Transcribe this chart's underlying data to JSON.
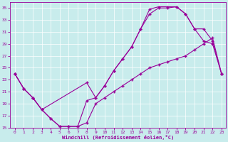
{
  "xlabel": "Windchill (Refroidissement éolien,°C)",
  "bg_color": "#c8ecec",
  "line_color": "#990099",
  "xlim": [
    -0.5,
    23.5
  ],
  "ylim": [
    15,
    36
  ],
  "yticks": [
    15,
    17,
    19,
    21,
    23,
    25,
    27,
    29,
    31,
    33,
    35
  ],
  "xticks": [
    0,
    1,
    2,
    3,
    4,
    5,
    6,
    7,
    8,
    9,
    10,
    11,
    12,
    13,
    14,
    15,
    16,
    17,
    18,
    19,
    20,
    21,
    22,
    23
  ],
  "line1_x": [
    0,
    1,
    2,
    3,
    4,
    5,
    6,
    7,
    8,
    9,
    10,
    11,
    12,
    13,
    14,
    15,
    16,
    17,
    18,
    19,
    20,
    21,
    22,
    23
  ],
  "line1_y": [
    24,
    21.5,
    20,
    18,
    16.5,
    15.2,
    15.2,
    15.2,
    15.8,
    19,
    20,
    21,
    22,
    23,
    24,
    25,
    25.5,
    26,
    26.5,
    27,
    28,
    29,
    30,
    24
  ],
  "line2_x": [
    0,
    1,
    2,
    3,
    4,
    5,
    6,
    7,
    8,
    9,
    10,
    11,
    12,
    13,
    14,
    15,
    16,
    17,
    18,
    19,
    20,
    21,
    22,
    23
  ],
  "line2_y": [
    24,
    21.5,
    20,
    18,
    16.5,
    15.2,
    15.2,
    15.2,
    19.5,
    20,
    22,
    24.5,
    26.5,
    28.5,
    31.5,
    34,
    35,
    35,
    35.2,
    34,
    31.5,
    29.5,
    29,
    24
  ],
  "line3_x": [
    0,
    1,
    2,
    3,
    8,
    9,
    10,
    11,
    12,
    13,
    14,
    15,
    16,
    17,
    18,
    19,
    20,
    21,
    22,
    23
  ],
  "line3_y": [
    24,
    21.5,
    20,
    18,
    22.5,
    20,
    22,
    24.5,
    26.5,
    28.5,
    31.5,
    34.8,
    35.2,
    35.2,
    35.2,
    34,
    31.5,
    31.5,
    29.5,
    24
  ]
}
